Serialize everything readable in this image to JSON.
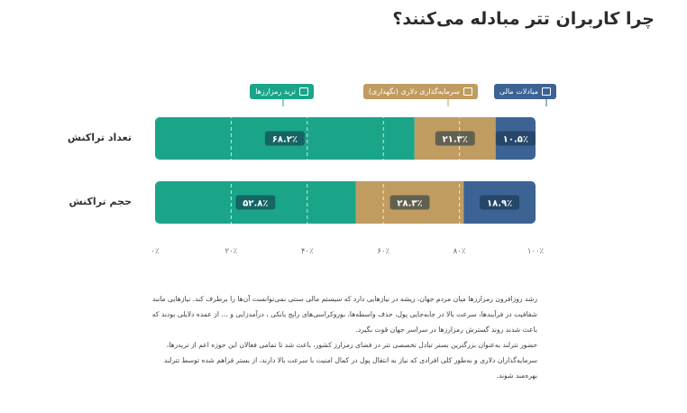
{
  "title": "چرا کاربران تتر مبادله می‌کنند؟",
  "legend": [
    {
      "label": "مبادلات مالی",
      "color": "#3c6394",
      "icon": "exchange-icon"
    },
    {
      "label": "سرمایه‌گذاری دلاری (نگهداری)",
      "color": "#c09c61",
      "icon": "wallet-icon"
    },
    {
      "label": "ترید رمزارزها",
      "color": "#1aa589",
      "icon": "chart-icon"
    }
  ],
  "chart_data": {
    "type": "bar",
    "orientation": "horizontal",
    "stacked": true,
    "direction": "rtl",
    "categories": [
      "تعداد تراکنش",
      "حجم تراکنش"
    ],
    "series": [
      {
        "name": "ترید رمزارزها",
        "color": "#1aa589",
        "values": [
          68.2,
          52.8
        ],
        "labels": [
          "۶۸.۲٪",
          "۵۲.۸٪"
        ]
      },
      {
        "name": "سرمایه‌گذاری دلاری (نگهداری)",
        "color": "#c09c61",
        "values": [
          21.3,
          28.3
        ],
        "labels": [
          "۲۱.۳٪",
          "۲۸.۳٪"
        ]
      },
      {
        "name": "مبادلات مالی",
        "color": "#3c6394",
        "values": [
          10.5,
          18.9
        ],
        "labels": [
          "۱۰.۵٪",
          "۱۸.۹٪"
        ]
      }
    ],
    "xlim": [
      0,
      100
    ],
    "ticks": [
      0,
      20,
      40,
      60,
      80,
      100
    ],
    "tick_labels": [
      "۰٪",
      "۲۰٪",
      "۴۰٪",
      "۶۰٪",
      "۸۰٪",
      "۱۰۰٪"
    ],
    "grid": "dashed vertical"
  },
  "body": {
    "p1": "رشد روزافزون رمزارزها میان مردم جهان، ریشه در نیازهایی دارد که سیستم مالی سنتی نمی‌توانست آن‌ها را برطرف کند. نیازهایی مانند شفافیت در فرآیندها، سرعت بالا در جابه‌جایی پول، حذف واسطه‌ها، بوروکراسی‌های رایج بانکی ، درآمدزایی و … از عمده دلایلی بودند که باعث شدند روند گسترش رمزارزها در سراسر جهان قوت بگیرد.",
    "p2": "حضور تترلند به‌عنوان بزرگترین بستر تبادل تخصصی تتر در فضای رمزارز کشور، باعث شد تا تمامی فعالان این حوزه اعم از تریدرها، سرمایه‌گذاران دلاری و به‌طور کلی افرادی که نیاز به انتقال پول در کمال امنیت با سرعت بالا دارند، از بستر فراهم شده توسط تترلند بهره‌مند شوند."
  }
}
